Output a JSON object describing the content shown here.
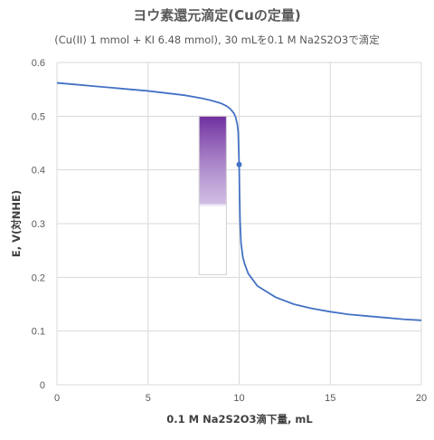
{
  "chart_data": {
    "type": "line",
    "title": "ヨウ素還元滴定(Cuの定量)",
    "subtitle": "(Cu(II) 1 mmol + KI 6.48 mmol), 30 mLを0.1 M Na2S2O3で滴定",
    "xlabel": "0.1 M Na2S2O3滴下量, mL",
    "ylabel": "E, V(対NHE)",
    "xlim": [
      0,
      20
    ],
    "ylim": [
      0,
      0.6
    ],
    "grid": true,
    "x_ticks": [
      "0",
      "5",
      "10",
      "15",
      "20"
    ],
    "y_ticks": [
      "0",
      "0.1",
      "0.2",
      "0.3",
      "0.4",
      "0.5",
      "0.6"
    ],
    "series": [
      {
        "color": "#4472C4",
        "x": [
          0,
          1,
          2,
          3,
          4,
          5,
          6,
          7,
          8,
          8.5,
          9,
          9.3,
          9.5,
          9.7,
          9.8,
          9.9,
          9.95,
          10.0,
          10.02,
          10.05,
          10.1,
          10.2,
          10.3,
          10.5,
          11,
          12,
          13,
          14,
          15,
          16,
          17,
          18,
          19,
          20
        ],
        "y": [
          0.562,
          0.559,
          0.556,
          0.553,
          0.55,
          0.547,
          0.543,
          0.539,
          0.533,
          0.529,
          0.524,
          0.519,
          0.514,
          0.506,
          0.499,
          0.485,
          0.47,
          0.41,
          0.36,
          0.305,
          0.265,
          0.238,
          0.225,
          0.207,
          0.184,
          0.163,
          0.15,
          0.142,
          0.136,
          0.131,
          0.128,
          0.125,
          0.122,
          0.12
        ]
      }
    ],
    "marker": {
      "x": 10.0,
      "y": 0.41,
      "color": "#4472C4"
    },
    "indicator_box": {
      "x_range": [
        7.8,
        9.3
      ],
      "y_range": [
        0.205,
        0.5
      ],
      "top_color": "#7030A0"
    }
  }
}
